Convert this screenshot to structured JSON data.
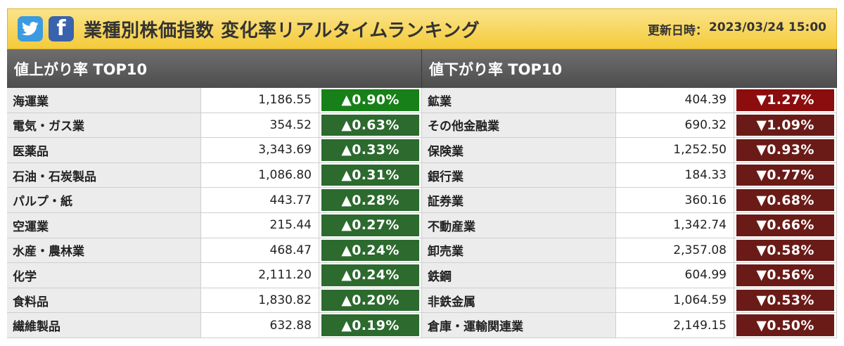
{
  "header": {
    "title": "業種別株価指数 変化率リアルタイムランキング",
    "updated_label": "更新日時：",
    "updated_value": "2023/03/24 15:00",
    "social": [
      "twitter-icon",
      "facebook-icon"
    ]
  },
  "up": {
    "heading": "値上がり率 TOP10",
    "rows": [
      {
        "name": "海運業",
        "value": "1,186.55",
        "change": "▲0.90%"
      },
      {
        "name": "電気・ガス業",
        "value": "354.52",
        "change": "▲0.63%"
      },
      {
        "name": "医薬品",
        "value": "3,343.69",
        "change": "▲0.33%"
      },
      {
        "name": "石油・石炭製品",
        "value": "1,086.80",
        "change": "▲0.31%"
      },
      {
        "name": "パルプ・紙",
        "value": "443.77",
        "change": "▲0.28%"
      },
      {
        "name": "空運業",
        "value": "215.44",
        "change": "▲0.27%"
      },
      {
        "name": "水産・農林業",
        "value": "468.47",
        "change": "▲0.24%"
      },
      {
        "name": "化学",
        "value": "2,111.20",
        "change": "▲0.24%"
      },
      {
        "name": "食料品",
        "value": "1,830.82",
        "change": "▲0.20%"
      },
      {
        "name": "繊維製品",
        "value": "632.88",
        "change": "▲0.19%"
      }
    ]
  },
  "down": {
    "heading": "値下がり率 TOP10",
    "rows": [
      {
        "name": "鉱業",
        "value": "404.39",
        "change": "▼1.27%"
      },
      {
        "name": "その他金融業",
        "value": "690.32",
        "change": "▼1.09%"
      },
      {
        "name": "保険業",
        "value": "1,252.50",
        "change": "▼0.93%"
      },
      {
        "name": "銀行業",
        "value": "184.33",
        "change": "▼0.77%"
      },
      {
        "name": "証券業",
        "value": "360.16",
        "change": "▼0.68%"
      },
      {
        "name": "不動産業",
        "value": "1,342.74",
        "change": "▼0.66%"
      },
      {
        "name": "卸売業",
        "value": "2,357.08",
        "change": "▼0.58%"
      },
      {
        "name": "鉄鋼",
        "value": "604.99",
        "change": "▼0.56%"
      },
      {
        "name": "非鉄金属",
        "value": "1,064.59",
        "change": "▼0.53%"
      },
      {
        "name": "倉庫・運輸関連業",
        "value": "2,149.15",
        "change": "▼0.50%"
      }
    ]
  },
  "colors": {
    "header_yellow": "#f4cb3a",
    "up_green": "#2c6a2e",
    "down_red": "#6a1b17"
  }
}
